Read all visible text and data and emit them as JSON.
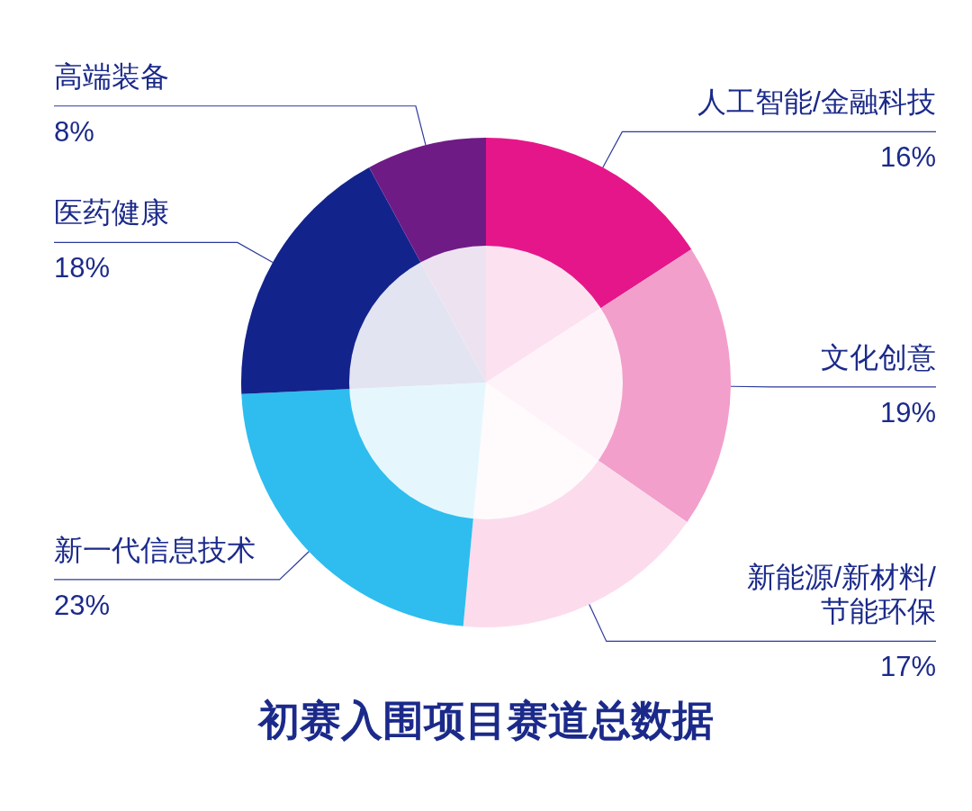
{
  "chart_data": {
    "type": "donut",
    "title": "初赛入围项目赛道总数据",
    "categories": [
      "人工智能/金融科技",
      "文化创意",
      "新能源/新材料/节能环保",
      "新一代信息技术",
      "医药健康",
      "高端装备"
    ],
    "values": [
      16,
      19,
      17,
      23,
      18,
      8
    ],
    "colors": [
      "#e5168a",
      "#f29fcb",
      "#fcdcec",
      "#2ebdee",
      "#13238c",
      "#6e1b86"
    ],
    "value_labels": [
      "16%",
      "19%",
      "17%",
      "23%",
      "18%",
      "8%"
    ]
  }
}
